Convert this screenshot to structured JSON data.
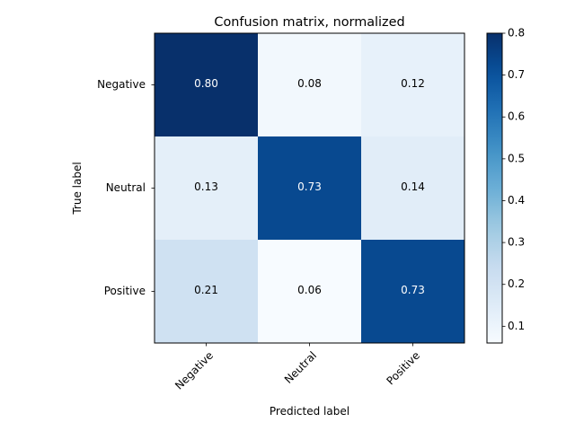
{
  "chart_data": {
    "type": "heatmap",
    "title": "Confusion matrix, normalized",
    "xlabel": "Predicted label",
    "ylabel": "True label",
    "x_categories": [
      "Negative",
      "Neutral",
      "Positive"
    ],
    "y_categories": [
      "Negative",
      "Neutral",
      "Positive"
    ],
    "values": [
      [
        0.8,
        0.08,
        0.12
      ],
      [
        0.13,
        0.73,
        0.14
      ],
      [
        0.21,
        0.06,
        0.73
      ]
    ],
    "value_labels": [
      [
        "0.80",
        "0.08",
        "0.12"
      ],
      [
        "0.13",
        "0.73",
        "0.14"
      ],
      [
        "0.21",
        "0.06",
        "0.73"
      ]
    ],
    "colormap": "Blues",
    "colorbar": {
      "range": [
        0.06,
        0.8
      ],
      "ticks": [
        0.1,
        0.2,
        0.3,
        0.4,
        0.5,
        0.6,
        0.7,
        0.8
      ],
      "tick_labels": [
        "0.1",
        "0.2",
        "0.3",
        "0.4",
        "0.5",
        "0.6",
        "0.7",
        "0.8"
      ]
    },
    "grid": false,
    "x_tick_rotation_deg": 45
  }
}
